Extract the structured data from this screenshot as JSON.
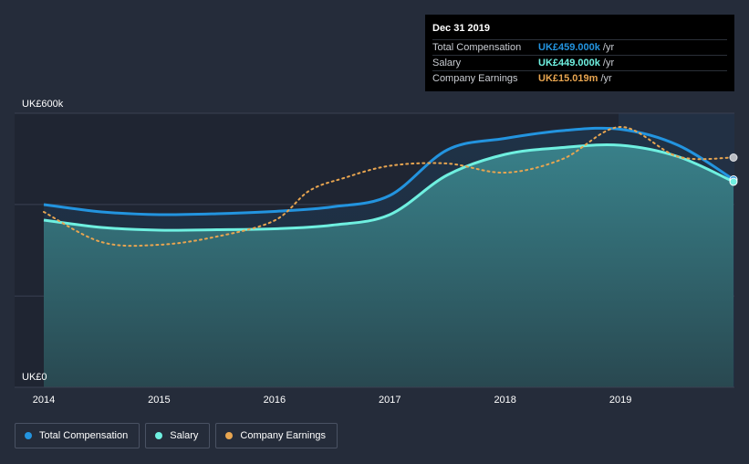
{
  "tooltip": {
    "date": "Dec 31 2019",
    "rows": [
      {
        "name": "Total Compensation",
        "value": "UK£459.000k",
        "unit": "/yr",
        "color": "#2394df"
      },
      {
        "name": "Salary",
        "value": "UK£449.000k",
        "unit": "/yr",
        "color": "#6ff0e0"
      },
      {
        "name": "Company Earnings",
        "value": "UK£15.019m",
        "unit": "/yr",
        "color": "#e8a550"
      }
    ]
  },
  "legend": [
    {
      "label": "Total Compensation",
      "color": "#2394df"
    },
    {
      "label": "Salary",
      "color": "#6ff0e0"
    },
    {
      "label": "Company Earnings",
      "color": "#e8a550"
    }
  ],
  "chart_data": {
    "type": "line",
    "y_axis_labels": {
      "top": "UK£600k",
      "bottom": "UK£0"
    },
    "ylim": [
      0,
      600000
    ],
    "xlim": [
      2014,
      2019.98
    ],
    "x_ticks": [
      2014,
      2015,
      2016,
      2017,
      2018,
      2019
    ],
    "grid": true,
    "legend_position": "bottom-left",
    "series": [
      {
        "name": "Total Compensation",
        "color": "#2394df",
        "x": [
          2014,
          2014.5,
          2015,
          2015.5,
          2016,
          2016.5,
          2017,
          2017.5,
          2018,
          2018.5,
          2019,
          2019.5,
          2019.98
        ],
        "y": [
          400000,
          384000,
          378000,
          380000,
          385000,
          395000,
          420000,
          520000,
          545000,
          562000,
          565000,
          530000,
          455000
        ]
      },
      {
        "name": "Salary",
        "color": "#6ff0e0",
        "x": [
          2014,
          2014.5,
          2015,
          2015.5,
          2016,
          2016.5,
          2017,
          2017.5,
          2018,
          2018.5,
          2019,
          2019.5,
          2019.98
        ],
        "y": [
          366000,
          350000,
          344000,
          345000,
          347000,
          355000,
          378000,
          465000,
          510000,
          525000,
          530000,
          505000,
          450000
        ]
      },
      {
        "name": "Company Earnings",
        "color": "#e8a550",
        "dashed": true,
        "x": [
          2014,
          2014.5,
          2015,
          2015.5,
          2016,
          2016.3,
          2016.6,
          2017,
          2017.5,
          2018,
          2018.5,
          2019,
          2019.5,
          2019.98
        ],
        "y": [
          384000,
          318000,
          312000,
          330000,
          365000,
          430000,
          458000,
          485000,
          490000,
          470000,
          500000,
          570000,
          505000,
          503000
        ]
      }
    ]
  }
}
